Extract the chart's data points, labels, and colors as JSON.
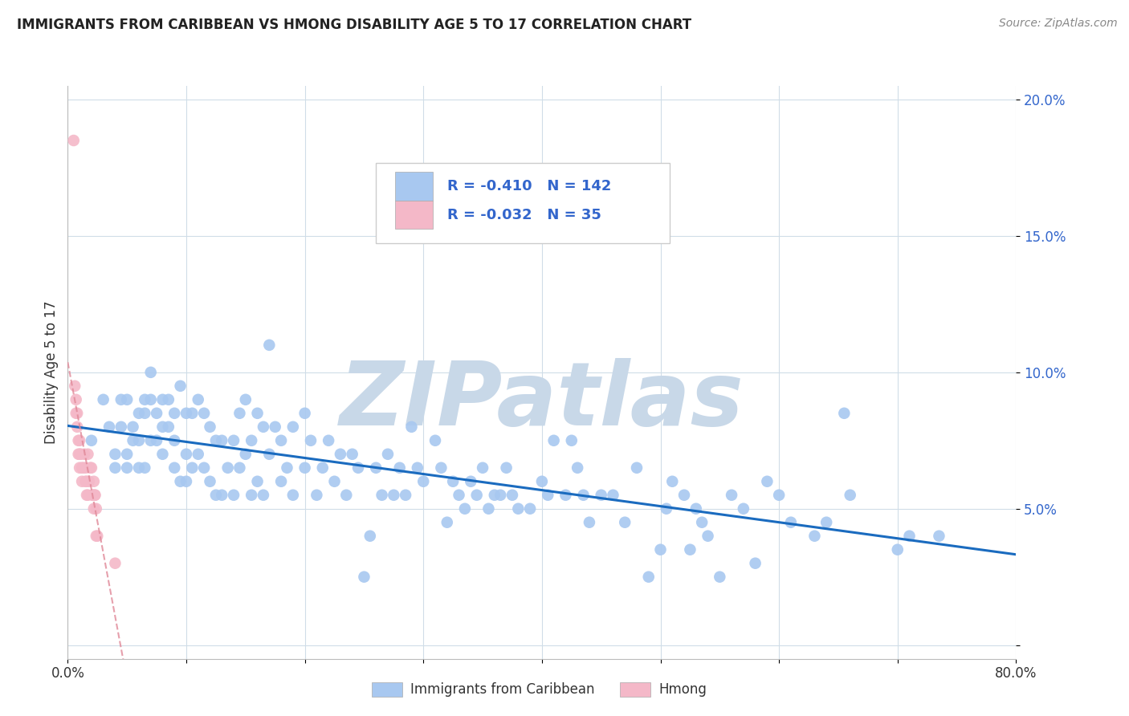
{
  "title": "IMMIGRANTS FROM CARIBBEAN VS HMONG DISABILITY AGE 5 TO 17 CORRELATION CHART",
  "source": "Source: ZipAtlas.com",
  "ylabel": "Disability Age 5 to 17",
  "xlim": [
    0,
    0.8
  ],
  "ylim": [
    -0.005,
    0.205
  ],
  "yticks": [
    0.0,
    0.05,
    0.1,
    0.15,
    0.2
  ],
  "ytick_labels": [
    "",
    "5.0%",
    "10.0%",
    "15.0%",
    "20.0%"
  ],
  "xticks": [
    0.0,
    0.1,
    0.2,
    0.3,
    0.4,
    0.5,
    0.6,
    0.7,
    0.8
  ],
  "xtick_labels": [
    "0.0%",
    "",
    "",
    "",
    "",
    "",
    "",
    "",
    "80.0%"
  ],
  "caribbean_R": -0.41,
  "caribbean_N": 142,
  "hmong_R": -0.032,
  "hmong_N": 35,
  "caribbean_color": "#a8c8f0",
  "hmong_color": "#f4b8c8",
  "trend_caribbean_color": "#1a6bbf",
  "trend_hmong_color": "#e08898",
  "watermark": "ZIPatlas",
  "watermark_color": "#c8d8e8",
  "caribbean_x": [
    0.02,
    0.03,
    0.035,
    0.04,
    0.04,
    0.045,
    0.045,
    0.05,
    0.05,
    0.05,
    0.055,
    0.055,
    0.06,
    0.06,
    0.06,
    0.065,
    0.065,
    0.065,
    0.07,
    0.07,
    0.07,
    0.075,
    0.075,
    0.08,
    0.08,
    0.08,
    0.085,
    0.085,
    0.09,
    0.09,
    0.09,
    0.095,
    0.095,
    0.1,
    0.1,
    0.1,
    0.105,
    0.105,
    0.11,
    0.11,
    0.115,
    0.115,
    0.12,
    0.12,
    0.125,
    0.125,
    0.13,
    0.13,
    0.135,
    0.14,
    0.14,
    0.145,
    0.145,
    0.15,
    0.15,
    0.155,
    0.155,
    0.16,
    0.16,
    0.165,
    0.165,
    0.17,
    0.17,
    0.175,
    0.18,
    0.18,
    0.185,
    0.19,
    0.19,
    0.2,
    0.2,
    0.205,
    0.21,
    0.215,
    0.22,
    0.225,
    0.23,
    0.235,
    0.24,
    0.245,
    0.25,
    0.255,
    0.26,
    0.265,
    0.27,
    0.275,
    0.28,
    0.285,
    0.29,
    0.295,
    0.3,
    0.31,
    0.315,
    0.32,
    0.325,
    0.33,
    0.335,
    0.34,
    0.345,
    0.35,
    0.355,
    0.36,
    0.365,
    0.37,
    0.375,
    0.38,
    0.39,
    0.4,
    0.405,
    0.41,
    0.42,
    0.425,
    0.43,
    0.435,
    0.44,
    0.45,
    0.46,
    0.47,
    0.48,
    0.49,
    0.5,
    0.505,
    0.51,
    0.52,
    0.525,
    0.53,
    0.535,
    0.54,
    0.55,
    0.56,
    0.57,
    0.58,
    0.59,
    0.6,
    0.61,
    0.63,
    0.64,
    0.655,
    0.66,
    0.7,
    0.71,
    0.735
  ],
  "caribbean_y": [
    0.075,
    0.09,
    0.08,
    0.07,
    0.065,
    0.08,
    0.09,
    0.09,
    0.07,
    0.065,
    0.075,
    0.08,
    0.085,
    0.075,
    0.065,
    0.09,
    0.085,
    0.065,
    0.1,
    0.09,
    0.075,
    0.085,
    0.075,
    0.08,
    0.09,
    0.07,
    0.09,
    0.08,
    0.085,
    0.075,
    0.065,
    0.095,
    0.06,
    0.085,
    0.07,
    0.06,
    0.085,
    0.065,
    0.09,
    0.07,
    0.085,
    0.065,
    0.08,
    0.06,
    0.075,
    0.055,
    0.075,
    0.055,
    0.065,
    0.075,
    0.055,
    0.085,
    0.065,
    0.09,
    0.07,
    0.075,
    0.055,
    0.085,
    0.06,
    0.08,
    0.055,
    0.11,
    0.07,
    0.08,
    0.075,
    0.06,
    0.065,
    0.08,
    0.055,
    0.085,
    0.065,
    0.075,
    0.055,
    0.065,
    0.075,
    0.06,
    0.07,
    0.055,
    0.07,
    0.065,
    0.025,
    0.04,
    0.065,
    0.055,
    0.07,
    0.055,
    0.065,
    0.055,
    0.08,
    0.065,
    0.06,
    0.075,
    0.065,
    0.045,
    0.06,
    0.055,
    0.05,
    0.06,
    0.055,
    0.065,
    0.05,
    0.055,
    0.055,
    0.065,
    0.055,
    0.05,
    0.05,
    0.06,
    0.055,
    0.075,
    0.055,
    0.075,
    0.065,
    0.055,
    0.045,
    0.055,
    0.055,
    0.045,
    0.065,
    0.025,
    0.035,
    0.05,
    0.06,
    0.055,
    0.035,
    0.05,
    0.045,
    0.04,
    0.025,
    0.055,
    0.05,
    0.03,
    0.06,
    0.055,
    0.045,
    0.04,
    0.045,
    0.085,
    0.055,
    0.035,
    0.04,
    0.04
  ],
  "hmong_x": [
    0.005,
    0.006,
    0.007,
    0.007,
    0.008,
    0.008,
    0.009,
    0.009,
    0.01,
    0.01,
    0.01,
    0.011,
    0.012,
    0.012,
    0.013,
    0.014,
    0.015,
    0.015,
    0.016,
    0.016,
    0.017,
    0.017,
    0.018,
    0.019,
    0.02,
    0.021,
    0.021,
    0.022,
    0.022,
    0.023,
    0.023,
    0.024,
    0.024,
    0.025,
    0.04
  ],
  "hmong_y": [
    0.185,
    0.095,
    0.09,
    0.085,
    0.085,
    0.08,
    0.075,
    0.07,
    0.075,
    0.07,
    0.065,
    0.07,
    0.065,
    0.06,
    0.065,
    0.07,
    0.065,
    0.06,
    0.055,
    0.06,
    0.07,
    0.055,
    0.06,
    0.065,
    0.065,
    0.055,
    0.055,
    0.06,
    0.05,
    0.055,
    0.055,
    0.05,
    0.04,
    0.04,
    0.03
  ]
}
